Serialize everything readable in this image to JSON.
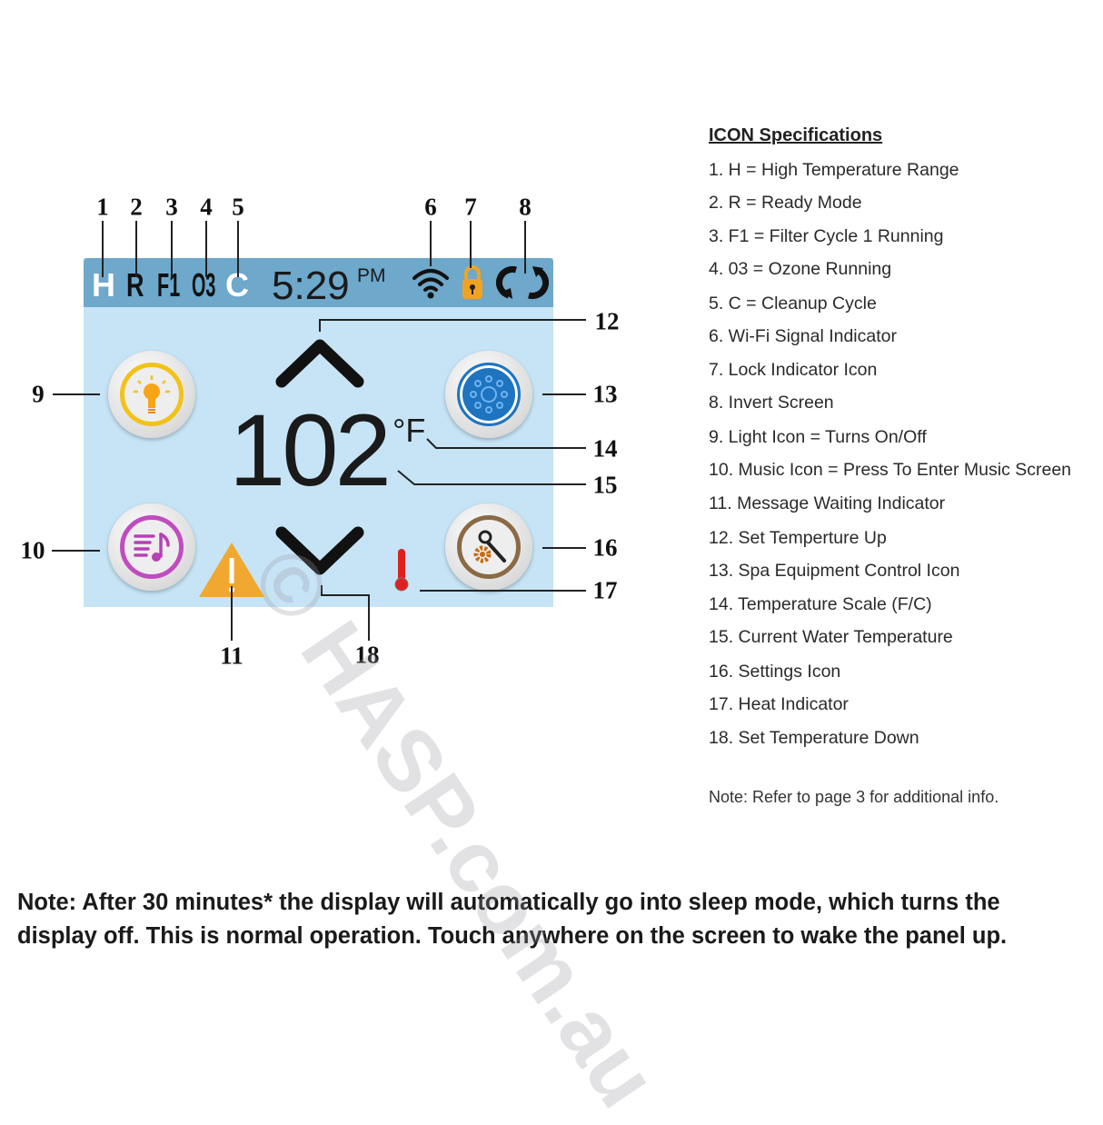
{
  "panel": {
    "status_icons": [
      "H",
      "R",
      "F1",
      "O3",
      "C"
    ],
    "time": "5:29",
    "time_suffix": "PM",
    "temperature": "102",
    "temperature_unit": "°F",
    "icons": {
      "wifi": "wifi-icon",
      "lock": "lock-icon",
      "invert": "invert-screen-icon",
      "light": "light-bulb-icon",
      "music": "music-icon",
      "spa": "spa-jets-icon",
      "settings": "settings-wrench-gear-icon",
      "warning": "warning-triangle-icon",
      "heat": "thermometer-icon",
      "up": "chevron-up-icon",
      "down": "chevron-down-icon"
    },
    "colors": {
      "topbar": "#6ea8cb",
      "screen": "#c6e4f5",
      "lock": "#f0a323",
      "light": "#f3c21a",
      "music": "#c04cc0",
      "spa": "#1f74c0",
      "settings": "#8a6a45",
      "warning": "#f0a830",
      "heat": "#e02020"
    }
  },
  "callouts": [
    "1",
    "2",
    "3",
    "4",
    "5",
    "6",
    "7",
    "8",
    "9",
    "10",
    "11",
    "12",
    "13",
    "14",
    "15",
    "16",
    "17",
    "18"
  ],
  "specs": {
    "title": "ICON Specifications",
    "items": [
      "1. H = High Temperature Range",
      "2. R = Ready Mode",
      "3. F1 = Filter Cycle 1 Running",
      "4. 03 = Ozone Running",
      "5. C = Cleanup Cycle",
      "6. Wi-Fi Signal Indicator",
      "7. Lock Indicator Icon",
      "8. Invert Screen",
      "9. Light Icon = Turns On/Off",
      "10. Music Icon = Press To Enter Music Screen",
      "11. Message Waiting Indicator",
      "12. Set Temperture Up",
      "13. Spa Equipment Control Icon",
      "14. Temperature Scale (F/C)",
      "15. Current Water Temperature",
      "16. Settings Icon",
      "17. Heat Indicator",
      "18. Set Temperature Down"
    ],
    "note": "Note: Refer to page 3 for additional info."
  },
  "bottom_note": "Note: After 30 minutes* the display will automatically go into sleep mode, which turns the display off. This is normal operation. Touch anywhere on the screen to wake the panel up.",
  "watermark": "© HASP.com.au"
}
